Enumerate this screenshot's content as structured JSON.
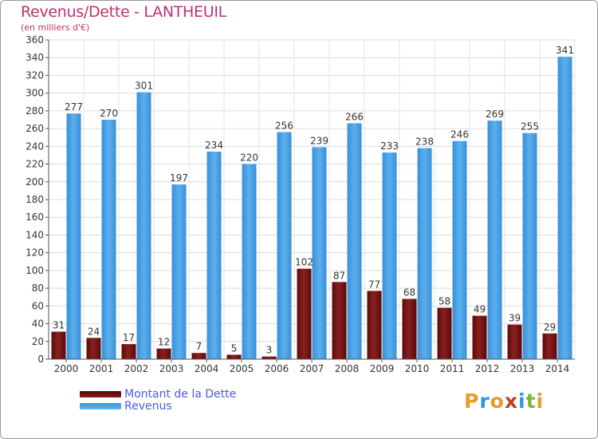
{
  "title": "Revenus/Dette - LANTHEUIL",
  "subtitle": "(en milliers d'€)",
  "legend": [
    {
      "label": "Montant de la Dette",
      "color": "#7a1414"
    },
    {
      "label": "Revenus",
      "color": "#4aa3e8"
    }
  ],
  "logo": {
    "text": "Proxiti",
    "letters": [
      "P",
      "r",
      "o",
      "x",
      "i",
      "t",
      "i"
    ],
    "colors": [
      "#e89a2a",
      "#2a9ae0",
      "#e89a2a",
      "#c04020",
      "#2a9ae0",
      "#7ab83a",
      "#e89a2a"
    ]
  },
  "chart_data": {
    "type": "bar",
    "categories": [
      "2000",
      "2001",
      "2002",
      "2003",
      "2004",
      "2005",
      "2006",
      "2007",
      "2008",
      "2009",
      "2010",
      "2011",
      "2012",
      "2013",
      "2014"
    ],
    "series": [
      {
        "name": "Montant de la Dette",
        "color": "#7a1414",
        "values": [
          31,
          24,
          17,
          12,
          7,
          5,
          3,
          102,
          87,
          77,
          68,
          58,
          49,
          39,
          29
        ]
      },
      {
        "name": "Revenus",
        "color": "#4aa3e8",
        "values": [
          277,
          270,
          301,
          197,
          234,
          220,
          256,
          239,
          266,
          233,
          238,
          246,
          269,
          255,
          341
        ]
      }
    ],
    "ylim": [
      0,
      360
    ],
    "yticks": [
      0,
      20,
      40,
      60,
      80,
      100,
      120,
      140,
      160,
      180,
      200,
      220,
      240,
      260,
      280,
      300,
      320,
      340,
      360
    ],
    "grid": true,
    "legend_position": "bottom-left"
  }
}
